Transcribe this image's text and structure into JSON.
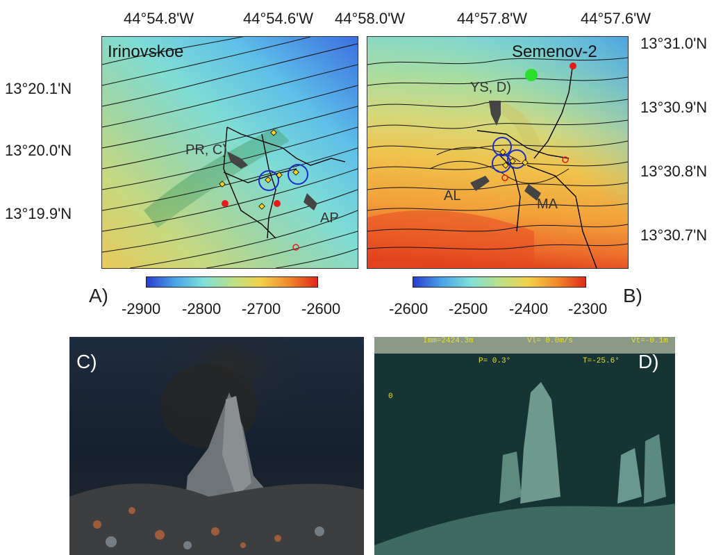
{
  "panels": {
    "a": {
      "site": "Irinovskoe",
      "panel_label": "A)",
      "lon_ticks": [
        "44°54.8'W",
        "44°54.6'W"
      ],
      "lat_ticks": [
        "13°20.1'N",
        "13°20.0'N",
        "13°19.9'N"
      ],
      "markers": [
        {
          "label": "PR, C)"
        },
        {
          "label": "AP"
        }
      ],
      "colorbar": {
        "ticks": [
          "-2900",
          "-2800",
          "-2700",
          "-2600"
        ],
        "colors": [
          "#2a3fcf",
          "#4aa3e6",
          "#7fe0d8",
          "#b9e08a",
          "#f2d24a",
          "#f08a2a",
          "#e02a1a"
        ]
      }
    },
    "b": {
      "site": "Semenov-2",
      "panel_label": "B)",
      "lon_ticks": [
        "44°58.0'W",
        "44°57.8'W",
        "44°57.6'W"
      ],
      "lat_ticks": [
        "13°31.0'N",
        "13°30.9'N",
        "13°30.8'N",
        "13°30.7'N"
      ],
      "markers": [
        {
          "label": "YS, D)"
        },
        {
          "label": "AL"
        },
        {
          "label": "MA"
        }
      ],
      "colorbar": {
        "ticks": [
          "-2600",
          "-2500",
          "-2400",
          "-2300"
        ],
        "colors": [
          "#2a3fcf",
          "#4aa3e6",
          "#7fe0d8",
          "#b9e08a",
          "#f2d24a",
          "#f08a2a",
          "#e02a1a"
        ]
      }
    },
    "c": {
      "panel_label": "C)"
    },
    "d": {
      "panel_label": "D)",
      "hud": {
        "imm": "Imm=2424.3m",
        "vl": "Vl= 0.0m/s",
        "vt": "Vt=-0.1m",
        "p": "P=  0.3°",
        "t": "T=-25.6°",
        "scale_zero": "0"
      }
    }
  }
}
